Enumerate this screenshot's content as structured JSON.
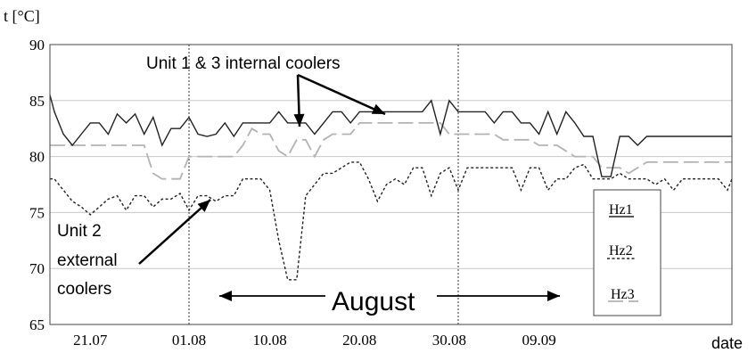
{
  "chart_data": {
    "type": "line",
    "ylabel": "t [°C]",
    "xlabel": "date",
    "ylim": [
      65,
      90
    ],
    "yticks": [
      65,
      70,
      75,
      80,
      85,
      90
    ],
    "xlim": [
      16.5,
      92.5
    ],
    "xticks": [
      {
        "label": "21.07",
        "x": 21
      },
      {
        "label": "01.08",
        "x": 32
      },
      {
        "label": "10.08",
        "x": 41
      },
      {
        "label": "20.08",
        "x": 51
      },
      {
        "label": "30.08",
        "x": 61
      },
      {
        "label": "09.09",
        "x": 71
      }
    ],
    "grid": "horizontal",
    "vlines": [
      32,
      62
    ],
    "series": [
      {
        "name": "Hz1",
        "color": "#222222",
        "dash": "solid",
        "x": [
          16.5,
          17,
          18,
          19,
          20,
          21,
          22,
          23,
          24,
          25,
          26,
          27,
          28,
          29,
          30,
          31,
          32,
          33,
          34,
          35,
          36,
          37,
          38,
          39,
          40,
          41,
          42,
          43,
          44,
          45,
          46,
          47,
          48,
          49,
          50,
          51,
          52,
          53,
          54,
          55,
          56,
          57,
          58,
          59,
          60,
          61,
          62,
          63,
          64,
          65,
          66,
          67,
          68,
          69,
          70,
          71,
          72,
          73,
          74,
          75,
          76,
          77,
          78,
          79,
          80,
          81,
          82,
          83,
          84,
          85,
          86,
          87,
          88,
          89,
          90,
          91,
          92,
          92.5
        ],
        "y": [
          85.5,
          84,
          82,
          81,
          82,
          83,
          83,
          82,
          83.8,
          83,
          83.8,
          82,
          83.5,
          81,
          82.5,
          82.5,
          83.5,
          82,
          81.8,
          82,
          83,
          81.8,
          83,
          83,
          83,
          83,
          84,
          83,
          83,
          83,
          82,
          83,
          84,
          84,
          83,
          84,
          84,
          84,
          84,
          84,
          84,
          84,
          84,
          85,
          82,
          85,
          84,
          84,
          84,
          84,
          83,
          84,
          84,
          83,
          83,
          82,
          84,
          82,
          84,
          83,
          81.8,
          81.8,
          78.2,
          78.2,
          81.8,
          81.8,
          81,
          81.8,
          81.8,
          81.8,
          81.8,
          81.8,
          81.8,
          81.8,
          81.8,
          81.8,
          81.8,
          81.8
        ]
      },
      {
        "name": "Hz2",
        "color": "#222222",
        "dash": "3,2.5",
        "x": [
          16.5,
          17,
          18,
          19,
          20,
          21,
          22,
          23,
          24,
          25,
          26,
          27,
          28,
          29,
          30,
          31,
          32,
          33,
          34,
          35,
          36,
          37,
          38,
          39,
          40,
          41,
          42,
          43,
          44,
          45,
          46,
          47,
          48,
          49,
          50,
          51,
          52,
          53,
          54,
          55,
          56,
          57,
          58,
          59,
          60,
          61,
          62,
          63,
          64,
          65,
          66,
          67,
          68,
          69,
          70,
          71,
          72,
          73,
          74,
          75,
          76,
          77,
          78,
          79,
          80,
          81,
          82,
          83,
          84,
          85,
          86,
          87,
          88,
          89,
          90,
          91,
          92,
          92.5
        ],
        "y": [
          78,
          78,
          77,
          76,
          75.5,
          74.8,
          75.5,
          76.2,
          76.5,
          75.2,
          76.5,
          76.5,
          75.5,
          76.2,
          76.2,
          76.7,
          75.2,
          76.5,
          76.5,
          76,
          76.5,
          76.5,
          78,
          78,
          78,
          77,
          72.5,
          69,
          69,
          76.5,
          77.5,
          78.5,
          78.5,
          79,
          79.5,
          79.5,
          78,
          76,
          77.5,
          78,
          77.5,
          79,
          79,
          76.5,
          78.5,
          79,
          77,
          79,
          79,
          79,
          79,
          79,
          79,
          77,
          79,
          79,
          77,
          78,
          78,
          79,
          79.3,
          78,
          78,
          78,
          78.5,
          78,
          78,
          78,
          77.5,
          78,
          77,
          78,
          78,
          78,
          78,
          78,
          77,
          78
        ]
      },
      {
        "name": "Hz3",
        "color": "#b3b3b3",
        "dash": "17,6",
        "x": [
          16.5,
          17,
          18,
          19,
          20,
          21,
          22,
          23,
          24,
          25,
          26,
          27,
          28,
          29,
          30,
          31,
          32,
          33,
          34,
          35,
          36,
          37,
          38,
          39,
          40,
          41,
          42,
          43,
          44,
          45,
          46,
          47,
          48,
          49,
          50,
          51,
          52,
          53,
          54,
          55,
          56,
          57,
          58,
          59,
          60,
          61,
          62,
          63,
          64,
          65,
          66,
          67,
          68,
          69,
          70,
          71,
          72,
          73,
          74,
          75,
          76,
          77,
          78,
          79,
          80,
          81,
          82,
          83,
          84,
          85,
          86,
          87,
          88,
          89,
          90,
          91,
          92,
          92.5
        ],
        "y": [
          81,
          81,
          81,
          81,
          81,
          81,
          81,
          81,
          81,
          81,
          81,
          81,
          78.5,
          78,
          78,
          78,
          80,
          80,
          80,
          80,
          80,
          80,
          81,
          82.5,
          82,
          82,
          80.5,
          80,
          81.5,
          81.5,
          80,
          81.5,
          82,
          82,
          82,
          83,
          83,
          83,
          83,
          83,
          83,
          83,
          83,
          83,
          83,
          82,
          82,
          82,
          82,
          82,
          82,
          81.5,
          81.5,
          81.5,
          81.5,
          81,
          81,
          81,
          80.5,
          80,
          80,
          80,
          79,
          79,
          79,
          78.5,
          79,
          79.5,
          79.5,
          79.5,
          79.5,
          79.5,
          79.5,
          79.5,
          79.5,
          79.5,
          79.5,
          79.5
        ]
      }
    ],
    "legend": {
      "position": "right",
      "entries": [
        "Hz1",
        "Hz2",
        "Hz3"
      ]
    },
    "annotations": {
      "top": "Unit 1 & 3 internal coolers",
      "left_lines": [
        "Unit 2",
        "external",
        "coolers"
      ],
      "span": "August"
    }
  }
}
